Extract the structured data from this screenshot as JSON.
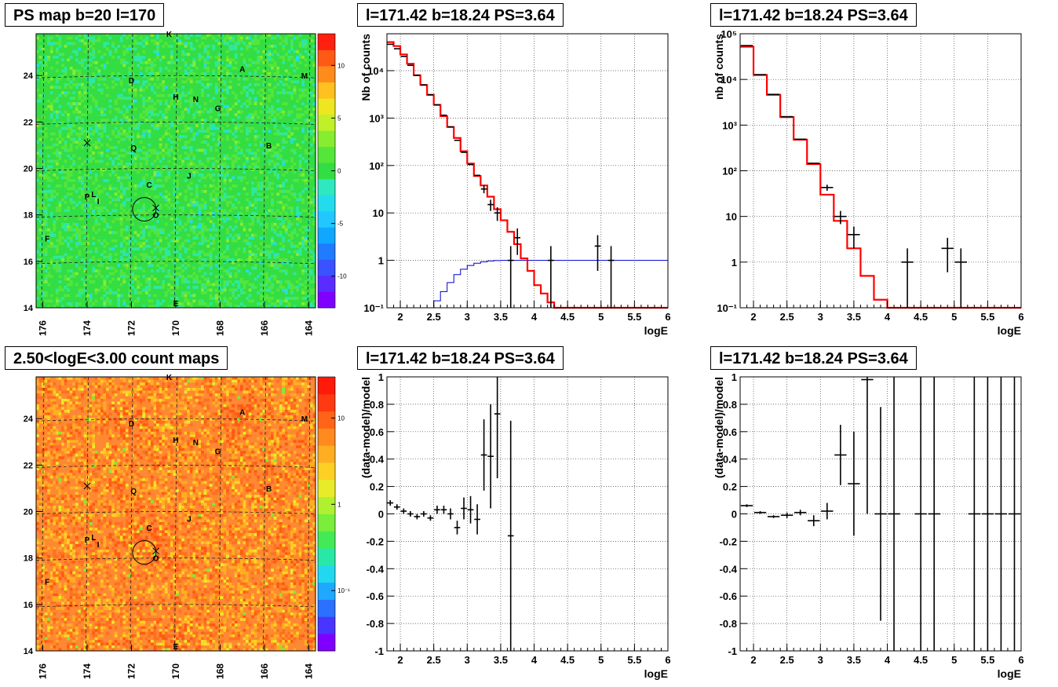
{
  "map_panels": [
    {
      "title": "PS map b=20 l=170",
      "x_ticks": [
        "176",
        "174",
        "172",
        "170",
        "168",
        "166",
        "164"
      ],
      "y_ticks": [
        "14",
        "16",
        "18",
        "20",
        "22",
        "24"
      ],
      "palette_labels": [
        "10",
        "5",
        "0",
        "-5",
        "-10"
      ],
      "base_color": "#33dd44"
    },
    {
      "title": "2.50<logE<3.00 count maps",
      "x_ticks": [
        "176",
        "174",
        "172",
        "170",
        "168",
        "166",
        "164"
      ],
      "y_ticks": [
        "14",
        "16",
        "18",
        "20",
        "22",
        "24"
      ],
      "palette_labels": [
        "10",
        "1",
        "10⁻¹"
      ],
      "base_color": "#ff8833"
    }
  ],
  "sources": [
    {
      "label": "K",
      "l": 170.3,
      "b": 25.8
    },
    {
      "label": "A",
      "l": 167.0,
      "b": 24.3
    },
    {
      "label": "M",
      "l": 164.2,
      "b": 24.0
    },
    {
      "label": "D",
      "l": 172.0,
      "b": 23.8
    },
    {
      "label": "H",
      "l": 170.0,
      "b": 23.1
    },
    {
      "label": "N",
      "l": 169.1,
      "b": 23.0
    },
    {
      "label": "G",
      "l": 168.1,
      "b": 22.6
    },
    {
      "label": "B",
      "l": 165.8,
      "b": 21.0
    },
    {
      "label": "Q",
      "l": 171.9,
      "b": 20.9
    },
    {
      "label": "J",
      "l": 169.4,
      "b": 19.7
    },
    {
      "label": "C",
      "l": 171.2,
      "b": 19.3
    },
    {
      "label": "P",
      "l": 174.0,
      "b": 18.8
    },
    {
      "label": "L",
      "l": 173.7,
      "b": 18.9
    },
    {
      "label": "I",
      "l": 173.5,
      "b": 18.6
    },
    {
      "label": "O",
      "l": 170.9,
      "b": 18.0
    },
    {
      "label": "F",
      "l": 175.8,
      "b": 17.0
    },
    {
      "label": "E",
      "l": 170.0,
      "b": 14.2
    }
  ],
  "plot_panels": [
    {
      "title": "l=171.42 b=18.24 PS=3.64",
      "ylabel": "Nb of counts",
      "xlabel": "logE"
    },
    {
      "title": "l=171.42 b=18.24 PS=3.64",
      "ylabel": "nb of counts",
      "xlabel": "logE"
    },
    {
      "title": "l=171.42 b=18.24 PS=3.64",
      "ylabel": "(data-model)/model",
      "xlabel": "logE"
    },
    {
      "title": "l=171.42 b=18.24 PS=3.64",
      "ylabel": "(data-model)/model",
      "xlabel": "logE"
    }
  ],
  "chart_data": [
    {
      "type": "heatmap",
      "title": "PS map b=20 l=170",
      "xlim": [
        176.3,
        163.7
      ],
      "ylim": [
        14,
        25.8
      ],
      "zlim": [
        -13,
        13
      ],
      "circle": {
        "l": 171.42,
        "b": 18.24
      },
      "crosses": [
        {
          "l": 174.0,
          "b": 21.1
        },
        {
          "l": 170.9,
          "b": 18.3
        }
      ]
    },
    {
      "type": "line",
      "title": "l=171.42 b=18.24 PS=3.64",
      "xlabel": "logE",
      "ylabel": "Nb of counts",
      "xlim": [
        1.8,
        6
      ],
      "ylim": [
        0.1,
        60000
      ],
      "log_y": true,
      "bin_width": 0.1,
      "x_ticks": [
        "2",
        "2.5",
        "3",
        "3.5",
        "4",
        "4.5",
        "5",
        "5.5",
        "6"
      ],
      "y_ticks": [
        {
          "v": 0.1,
          "t": "10⁻¹"
        },
        {
          "v": 1,
          "t": "1"
        },
        {
          "v": 10,
          "t": "10"
        },
        {
          "v": 100,
          "t": "10²"
        },
        {
          "v": 1000,
          "t": "10³"
        },
        {
          "v": 10000,
          "t": "10⁴"
        }
      ],
      "model_red": [
        40000,
        33000,
        22000,
        14000,
        8000,
        5000,
        3100,
        1900,
        1100,
        650,
        380,
        200,
        110,
        60,
        38,
        22,
        12,
        7,
        4,
        2.2,
        1.1,
        0.6,
        0.3,
        0.2,
        0.13,
        0.1,
        0.1,
        0.1,
        0.1,
        0.1,
        0.1,
        0.1,
        0.1,
        0.1,
        0.1,
        0.1,
        0.1,
        0.1,
        0.1,
        0.1,
        0.1,
        0.1
      ],
      "model_blue": [
        0.1,
        0.1,
        0.1,
        0.1,
        0.1,
        0.1,
        0.1,
        0.14,
        0.22,
        0.34,
        0.5,
        0.65,
        0.78,
        0.87,
        0.93,
        0.97,
        0.99,
        1,
        1,
        1,
        1,
        1,
        1,
        1,
        1,
        1,
        1,
        1,
        1,
        1,
        1,
        1,
        1,
        1,
        1,
        1,
        1,
        1,
        1,
        1,
        1,
        1
      ],
      "data_points": [
        {
          "x": 1.85,
          "y": 36000,
          "err": 0
        },
        {
          "x": 1.95,
          "y": 29000,
          "err": 0
        },
        {
          "x": 2.05,
          "y": 20000,
          "err": 0
        },
        {
          "x": 2.15,
          "y": 13000,
          "err": 0
        },
        {
          "x": 2.25,
          "y": 8000,
          "err": 0
        },
        {
          "x": 2.35,
          "y": 5000,
          "err": 0
        },
        {
          "x": 2.45,
          "y": 3100,
          "err": 0
        },
        {
          "x": 2.55,
          "y": 1900,
          "err": 0
        },
        {
          "x": 2.65,
          "y": 1150,
          "err": 0
        },
        {
          "x": 2.75,
          "y": 650,
          "err": 0
        },
        {
          "x": 2.85,
          "y": 340,
          "err": 0
        },
        {
          "x": 2.95,
          "y": 190,
          "err": 0
        },
        {
          "x": 3.05,
          "y": 105,
          "err": 0
        },
        {
          "x": 3.15,
          "y": 62,
          "err": 0
        },
        {
          "x": 3.25,
          "y": 32,
          "err": 6
        },
        {
          "x": 3.35,
          "y": 15,
          "err": 4
        },
        {
          "x": 3.45,
          "y": 10,
          "err": 3.2
        },
        {
          "x": 3.65,
          "y": 1,
          "err": 1
        },
        {
          "x": 3.75,
          "y": 3,
          "err": 1.7
        },
        {
          "x": 4.25,
          "y": 1,
          "err": 1
        },
        {
          "x": 4.95,
          "y": 2,
          "err": 1.4
        },
        {
          "x": 5.15,
          "y": 1,
          "err": 1
        }
      ]
    },
    {
      "type": "line",
      "title": "l=171.42 b=18.24 PS=3.64",
      "xlabel": "logE",
      "ylabel": "nb of counts",
      "xlim": [
        1.8,
        6
      ],
      "ylim": [
        0.1,
        100000
      ],
      "log_y": true,
      "bin_width": 0.2,
      "x_ticks": [
        "2",
        "2.5",
        "3",
        "3.5",
        "4",
        "4.5",
        "5",
        "5.5",
        "6"
      ],
      "y_ticks": [
        {
          "v": 0.1,
          "t": "10⁻¹"
        },
        {
          "v": 1,
          "t": "1"
        },
        {
          "v": 10,
          "t": "10"
        },
        {
          "v": 100,
          "t": "10²"
        },
        {
          "v": 1000,
          "t": "10³"
        },
        {
          "v": 10000,
          "t": "10⁴"
        },
        {
          "v": 100000,
          "t": "10⁵"
        }
      ],
      "model_red": [
        52000,
        12500,
        4600,
        1500,
        480,
        140,
        30,
        8,
        2,
        0.5,
        0.15,
        0.1,
        0.1,
        0.1,
        0.1,
        0.1,
        0.1,
        0.1,
        0.1,
        0.1,
        0.1
      ],
      "data_points": [
        {
          "x": 1.9,
          "y": 55000,
          "err": 0
        },
        {
          "x": 2.1,
          "y": 12700,
          "err": 0
        },
        {
          "x": 2.3,
          "y": 4700,
          "err": 0
        },
        {
          "x": 2.5,
          "y": 1530,
          "err": 0
        },
        {
          "x": 2.7,
          "y": 490,
          "err": 0
        },
        {
          "x": 2.9,
          "y": 146,
          "err": 0
        },
        {
          "x": 3.1,
          "y": 43,
          "err": 6.5
        },
        {
          "x": 3.3,
          "y": 10,
          "err": 3.2
        },
        {
          "x": 3.5,
          "y": 4,
          "err": 2
        },
        {
          "x": 4.3,
          "y": 1,
          "err": 1
        },
        {
          "x": 4.9,
          "y": 2,
          "err": 1.4
        },
        {
          "x": 5.1,
          "y": 1,
          "err": 1
        }
      ]
    },
    {
      "type": "scatter",
      "title": "l=171.42 b=18.24 PS=3.64",
      "xlabel": "logE",
      "ylabel": "(data-model)/model",
      "xlim": [
        1.8,
        6
      ],
      "ylim": [
        -1,
        1
      ],
      "x_ticks": [
        "2",
        "2.5",
        "3",
        "3.5",
        "4",
        "4.5",
        "5",
        "5.5",
        "6"
      ],
      "y_ticks": [
        "-1",
        "-0.8",
        "-0.6",
        "-0.4",
        "-0.2",
        "0",
        "0.2",
        "0.4",
        "0.6",
        "0.8",
        "1"
      ],
      "points": [
        {
          "x": 1.85,
          "y": 0.08,
          "err": 0.02
        },
        {
          "x": 1.95,
          "y": 0.05,
          "err": 0.02
        },
        {
          "x": 2.05,
          "y": 0.02,
          "err": 0.02
        },
        {
          "x": 2.15,
          "y": 0.0,
          "err": 0.02
        },
        {
          "x": 2.25,
          "y": -0.02,
          "err": 0.02
        },
        {
          "x": 2.35,
          "y": 0.0,
          "err": 0.02
        },
        {
          "x": 2.45,
          "y": -0.03,
          "err": 0.02
        },
        {
          "x": 2.55,
          "y": 0.03,
          "err": 0.03
        },
        {
          "x": 2.65,
          "y": 0.03,
          "err": 0.03
        },
        {
          "x": 2.75,
          "y": 0.0,
          "err": 0.04
        },
        {
          "x": 2.85,
          "y": -0.1,
          "err": 0.05
        },
        {
          "x": 2.95,
          "y": 0.04,
          "err": 0.08
        },
        {
          "x": 3.05,
          "y": 0.03,
          "err": 0.1
        },
        {
          "x": 3.15,
          "y": -0.04,
          "err": 0.11
        },
        {
          "x": 3.25,
          "y": 0.43,
          "err": 0.26
        },
        {
          "x": 3.35,
          "y": 0.42,
          "err": 0.38
        },
        {
          "x": 3.45,
          "y": 0.73,
          "err": 0.47
        },
        {
          "x": 3.65,
          "y": -0.16,
          "err": 0.84
        }
      ]
    },
    {
      "type": "scatter",
      "title": "l=171.42 b=18.24 PS=3.64",
      "xlabel": "logE",
      "ylabel": "(data-model)/model",
      "xlim": [
        1.8,
        6
      ],
      "ylim": [
        -1,
        1
      ],
      "x_ticks": [
        "2",
        "2.5",
        "3",
        "3.5",
        "4",
        "4.5",
        "5",
        "5.5",
        "6"
      ],
      "y_ticks": [
        "-1",
        "-0.8",
        "-0.6",
        "-0.4",
        "-0.2",
        "0",
        "0.2",
        "0.4",
        "0.6",
        "0.8",
        "1"
      ],
      "points": [
        {
          "x": 1.9,
          "y": 0.06,
          "err": 0.01
        },
        {
          "x": 2.1,
          "y": 0.01,
          "err": 0.01
        },
        {
          "x": 2.3,
          "y": -0.02,
          "err": 0.01
        },
        {
          "x": 2.5,
          "y": -0.01,
          "err": 0.02
        },
        {
          "x": 2.7,
          "y": 0.01,
          "err": 0.02
        },
        {
          "x": 2.9,
          "y": -0.05,
          "err": 0.04
        },
        {
          "x": 3.1,
          "y": 0.02,
          "err": 0.06
        },
        {
          "x": 3.3,
          "y": 0.43,
          "err": 0.22
        },
        {
          "x": 3.5,
          "y": 0.22,
          "err": 0.38
        },
        {
          "x": 3.7,
          "y": 0.98,
          "err": 0.98
        },
        {
          "x": 3.9,
          "y": 0.0,
          "err": 0.78
        },
        {
          "x": 4.1,
          "y": 0.0,
          "err": 1.6
        },
        {
          "x": 4.5,
          "y": 0.0,
          "err": 1.6
        },
        {
          "x": 4.7,
          "y": 0.0,
          "err": 1.6
        },
        {
          "x": 5.3,
          "y": 0.0,
          "err": 1.6
        },
        {
          "x": 5.5,
          "y": 0.0,
          "err": 1.6
        },
        {
          "x": 5.7,
          "y": 0.0,
          "err": 1.6
        },
        {
          "x": 5.9,
          "y": 0.0,
          "err": 1.6
        }
      ]
    },
    {
      "type": "heatmap",
      "title": "2.50<logE<3.00 count maps",
      "xlim": [
        176.3,
        163.7
      ],
      "ylim": [
        14,
        25.8
      ],
      "zlim": [
        0.02,
        30
      ],
      "log_z": true,
      "circle": {
        "l": 171.42,
        "b": 18.24
      },
      "crosses": [
        {
          "l": 174.0,
          "b": 21.1
        },
        {
          "l": 170.9,
          "b": 18.3
        }
      ],
      "hotspots": [
        {
          "l": 172.0,
          "b": 23.6
        },
        {
          "l": 167.0,
          "b": 24.2
        },
        {
          "l": 166.0,
          "b": 21.3
        },
        {
          "l": 171.1,
          "b": 19.0
        },
        {
          "l": 170.0,
          "b": 14.5
        }
      ]
    }
  ]
}
